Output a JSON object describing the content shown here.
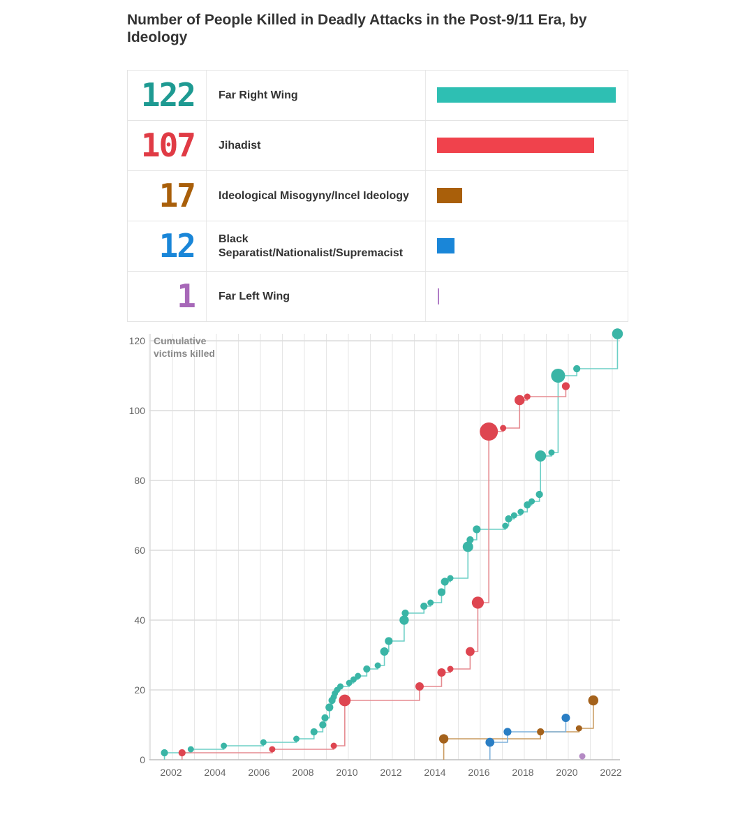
{
  "title": "Number of People Killed in Deadly Attacks in the Post-9/11 Era, by Ideology",
  "summary": [
    {
      "count": "122",
      "value": 122,
      "label": "Far Right Wing",
      "color": "#2ebfb3"
    },
    {
      "count": "107",
      "value": 107,
      "label": "Jihadist",
      "color": "#f0424c"
    },
    {
      "count": "17",
      "value": 17,
      "label": "Ideological Misogyny/Incel Ideology",
      "color": "#a95f0a"
    },
    {
      "count": "12",
      "value": 12,
      "label": "Black Separatist/Nationalist/Supremacist",
      "color": "#1a86d8"
    },
    {
      "count": "1",
      "value": 1,
      "label": "Far Left Wing",
      "color": "#b07cc6"
    }
  ],
  "number_colors": [
    "#1e9a92",
    "#e03b45",
    "#a95f0a",
    "#1a86d8",
    "#a768b8"
  ],
  "chart_data": {
    "type": "line",
    "title": "Number of People Killed in Deadly Attacks in the Post-9/11 Era, by Ideology",
    "ylabel": "Cumulative victims killed",
    "xlabel": "",
    "xlim": [
      2001,
      2022.4
    ],
    "ylim": [
      0,
      120
    ],
    "x_ticks": [
      "2002",
      "2004",
      "2006",
      "2008",
      "2010",
      "2012",
      "2014",
      "2016",
      "2018",
      "2020",
      "2022"
    ],
    "y_ticks": [
      "0",
      "20",
      "40",
      "60",
      "80",
      "100",
      "120"
    ],
    "grid": true,
    "step_style": "cumulative step line with circle markers sized by victims per attack",
    "series": [
      {
        "name": "Far Right Wing",
        "color": "#2ebfb3",
        "line_color": "#6ccfc6",
        "dot_color": "#3ab5a6",
        "points": [
          [
            2001.7,
            2
          ],
          [
            2002.9,
            3
          ],
          [
            2004.4,
            4
          ],
          [
            2006.2,
            5
          ],
          [
            2007.7,
            6
          ],
          [
            2008.5,
            8
          ],
          [
            2008.9,
            10
          ],
          [
            2009.0,
            12
          ],
          [
            2009.2,
            15
          ],
          [
            2009.32,
            17
          ],
          [
            2009.4,
            18
          ],
          [
            2009.45,
            19
          ],
          [
            2009.55,
            20
          ],
          [
            2009.7,
            21
          ],
          [
            2010.1,
            22
          ],
          [
            2010.3,
            23
          ],
          [
            2010.5,
            24
          ],
          [
            2010.9,
            26
          ],
          [
            2011.4,
            27
          ],
          [
            2011.7,
            31
          ],
          [
            2011.9,
            34
          ],
          [
            2012.6,
            40
          ],
          [
            2012.65,
            42
          ],
          [
            2013.5,
            44
          ],
          [
            2013.8,
            45
          ],
          [
            2014.3,
            48
          ],
          [
            2014.45,
            51
          ],
          [
            2014.7,
            52
          ],
          [
            2015.5,
            61
          ],
          [
            2015.6,
            63
          ],
          [
            2015.9,
            66
          ],
          [
            2017.2,
            67
          ],
          [
            2017.35,
            69
          ],
          [
            2017.6,
            70
          ],
          [
            2017.9,
            71
          ],
          [
            2018.2,
            73
          ],
          [
            2018.4,
            74
          ],
          [
            2018.75,
            76
          ],
          [
            2018.8,
            87
          ],
          [
            2019.3,
            88
          ],
          [
            2019.6,
            110
          ],
          [
            2020.45,
            112
          ],
          [
            2022.3,
            122
          ]
        ]
      },
      {
        "name": "Jihadist",
        "color": "#f0424c",
        "line_color": "#e58a90",
        "dot_color": "#de4550",
        "points": [
          [
            2002.5,
            2
          ],
          [
            2006.6,
            3
          ],
          [
            2009.4,
            4
          ],
          [
            2009.9,
            17
          ],
          [
            2013.3,
            21
          ],
          [
            2014.3,
            25
          ],
          [
            2014.7,
            26
          ],
          [
            2015.6,
            31
          ],
          [
            2015.95,
            45
          ],
          [
            2016.45,
            94
          ],
          [
            2017.1,
            95
          ],
          [
            2017.85,
            103
          ],
          [
            2018.2,
            104
          ],
          [
            2019.95,
            107
          ]
        ]
      },
      {
        "name": "Ideological Misogyny/Incel Ideology",
        "color": "#a95f0a",
        "line_color": "#c99a5e",
        "dot_color": "#a4621c",
        "points": [
          [
            2014.4,
            6
          ],
          [
            2018.8,
            8
          ],
          [
            2020.55,
            9
          ],
          [
            2021.2,
            17
          ]
        ]
      },
      {
        "name": "Black Separatist/Nationalist/Supremacist",
        "color": "#1a86d8",
        "line_color": "#7db1db",
        "dot_color": "#2a7ec4",
        "points": [
          [
            2016.5,
            5
          ],
          [
            2017.3,
            8
          ],
          [
            2019.95,
            12
          ]
        ]
      },
      {
        "name": "Far Left Wing",
        "color": "#b07cc6",
        "line_color": "#c7a4d6",
        "dot_color": "#b48ac4",
        "points": [
          [
            2020.7,
            1
          ]
        ]
      }
    ]
  }
}
